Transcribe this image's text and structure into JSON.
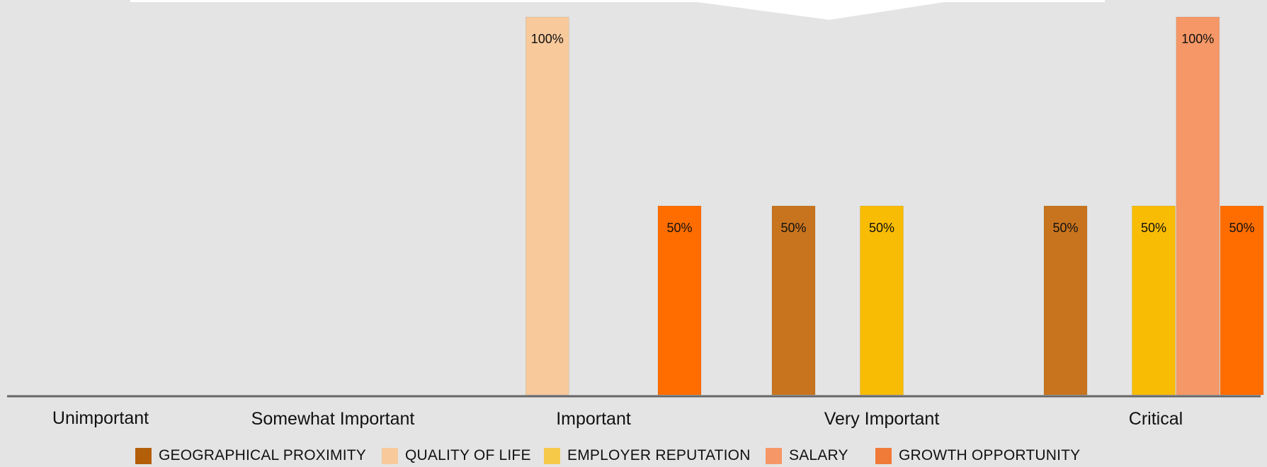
{
  "chart_data": {
    "type": "bar",
    "categories": [
      "Unimportant",
      "Somewhat Important",
      "Important",
      "Very Important",
      "Critical"
    ],
    "series": [
      {
        "name": "GEOGRAPHICAL PROXIMITY",
        "values": [
          0,
          0,
          0,
          50,
          50
        ],
        "color": "#c8741e",
        "legend_color": "#b35f0a"
      },
      {
        "name": "QUALITY OF LIFE",
        "values": [
          0,
          0,
          100,
          0,
          0
        ],
        "color": "#f7c99b",
        "legend_color": "#f7c99b"
      },
      {
        "name": "EMPLOYER REPUTATION",
        "values": [
          0,
          0,
          0,
          50,
          50
        ],
        "color": "#f9bc05",
        "legend_color": "#f6c94a"
      },
      {
        "name": "SALARY",
        "values": [
          0,
          0,
          0,
          0,
          100
        ],
        "color": "#f59766",
        "legend_color": "#f59766"
      },
      {
        "name": "GROWTH OPPORTUNITY",
        "values": [
          0,
          0,
          50,
          0,
          50
        ],
        "color": "#ff6d00",
        "legend_color": "#f07a38"
      }
    ],
    "data_labels": [
      {
        "category": "Important",
        "series": "QUALITY OF LIFE",
        "text": "100%"
      },
      {
        "category": "Important",
        "series": "GROWTH OPPORTUNITY",
        "text": "50%"
      },
      {
        "category": "Very Important",
        "series": "GEOGRAPHICAL PROXIMITY",
        "text": "50%"
      },
      {
        "category": "Very Important",
        "series": "EMPLOYER REPUTATION",
        "text": "50%"
      },
      {
        "category": "Critical",
        "series": "GEOGRAPHICAL PROXIMITY",
        "text": "50%"
      },
      {
        "category": "Critical",
        "series": "SALARY",
        "text": "100%"
      },
      {
        "category": "Critical",
        "series": "EMPLOYER REPUTATION",
        "text": "50%"
      },
      {
        "category": "Critical",
        "series": "GROWTH OPPORTUNITY",
        "text": "50%"
      }
    ],
    "ylim": [
      0,
      100
    ],
    "grid": false,
    "legend_position": "bottom",
    "title": "",
    "xlabel": "",
    "ylabel": ""
  },
  "colors": {
    "background": "#e4e4e4",
    "axis": "#666666",
    "top_shape": "#ffffff"
  }
}
